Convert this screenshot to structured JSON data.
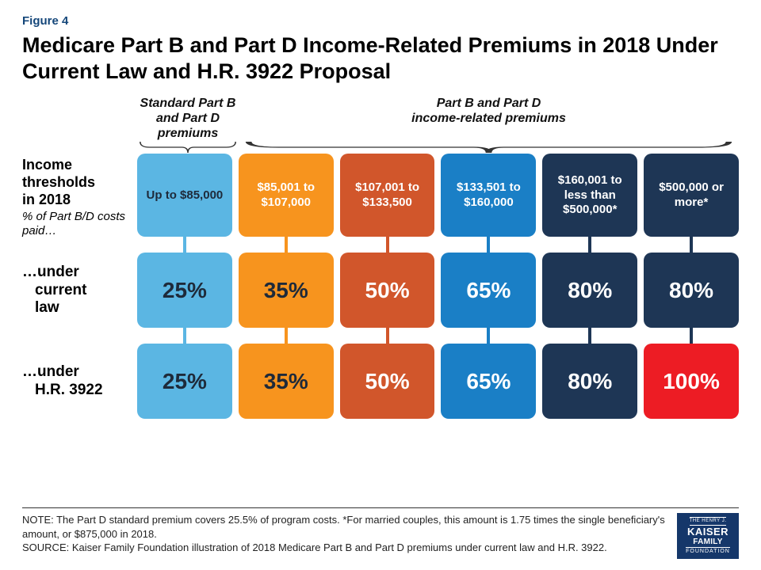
{
  "figure_label": "Figure 4",
  "title": "Medicare Part B and Part D Income-Related Premiums in 2018 Under Current Law and H.R. 3922 Proposal",
  "group_headers": {
    "left": "Standard Part B and Part D premiums",
    "right": "Part B and Part D\nincome-related premiums"
  },
  "row_labels": {
    "thresholds_line1": "Income",
    "thresholds_line2": "thresholds",
    "thresholds_line3": "in 2018",
    "pct_sub": "% of Part B/D costs paid…",
    "current_law_1": "…under",
    "current_law_2": "current",
    "current_law_3": "law",
    "hr_1": "…under",
    "hr_2": "H.R. 3922"
  },
  "columns": [
    {
      "threshold": "Up to $85,000",
      "header_color": "#5bb6e3",
      "header_text_color": "#1e2a3a",
      "current_law": "25%",
      "current_law_color": "#5bb6e3",
      "current_law_text": "#1e2a3a",
      "hr3922": "25%",
      "hr3922_color": "#5bb6e3",
      "hr3922_text": "#1e2a3a",
      "connector_color": "#5bb6e3"
    },
    {
      "threshold": "$85,001 to $107,000",
      "header_color": "#f7941e",
      "header_text_color": "#ffffff",
      "current_law": "35%",
      "current_law_color": "#f7941e",
      "current_law_text": "#1e2a3a",
      "hr3922": "35%",
      "hr3922_color": "#f7941e",
      "hr3922_text": "#1e2a3a",
      "connector_color": "#f7941e"
    },
    {
      "threshold": "$107,001 to $133,500",
      "header_color": "#d1562b",
      "header_text_color": "#ffffff",
      "current_law": "50%",
      "current_law_color": "#d1562b",
      "current_law_text": "#ffffff",
      "hr3922": "50%",
      "hr3922_color": "#d1562b",
      "hr3922_text": "#ffffff",
      "connector_color": "#d1562b"
    },
    {
      "threshold": "$133,501 to $160,000",
      "header_color": "#1a7fc6",
      "header_text_color": "#ffffff",
      "current_law": "65%",
      "current_law_color": "#1a7fc6",
      "current_law_text": "#ffffff",
      "hr3922": "65%",
      "hr3922_color": "#1a7fc6",
      "hr3922_text": "#ffffff",
      "connector_color": "#1a7fc6"
    },
    {
      "threshold": "$160,001 to less than $500,000*",
      "header_color": "#1e3655",
      "header_text_color": "#ffffff",
      "current_law": "80%",
      "current_law_color": "#1e3655",
      "current_law_text": "#ffffff",
      "hr3922": "80%",
      "hr3922_color": "#1e3655",
      "hr3922_text": "#ffffff",
      "connector_color": "#1e3655"
    },
    {
      "threshold": "$500,000 or more*",
      "header_color": "#1e3655",
      "header_text_color": "#ffffff",
      "current_law": "80%",
      "current_law_color": "#1e3655",
      "current_law_text": "#ffffff",
      "hr3922": "100%",
      "hr3922_color": "#ed1c24",
      "hr3922_text": "#ffffff",
      "connector_color": "#1e3655",
      "connector2_color": "#1e3655"
    }
  ],
  "footnote_note": "NOTE: The Part D standard premium covers 25.5% of program costs. *For married couples, this amount is 1.75 times the single beneficiary's amount, or $875,000 in 2018.",
  "footnote_source": "SOURCE: Kaiser Family Foundation illustration of 2018 Medicare Part B and Part D premiums under current law and H.R. 3922.",
  "logo": {
    "line1": "THE HENRY J.",
    "line2": "KAISER",
    "line3": "FAMILY",
    "line4": "FOUNDATION",
    "bg": "#15376a"
  },
  "style": {
    "bracket_color": "#333333",
    "title_color": "#000000",
    "figlabel_color": "#15477a"
  }
}
